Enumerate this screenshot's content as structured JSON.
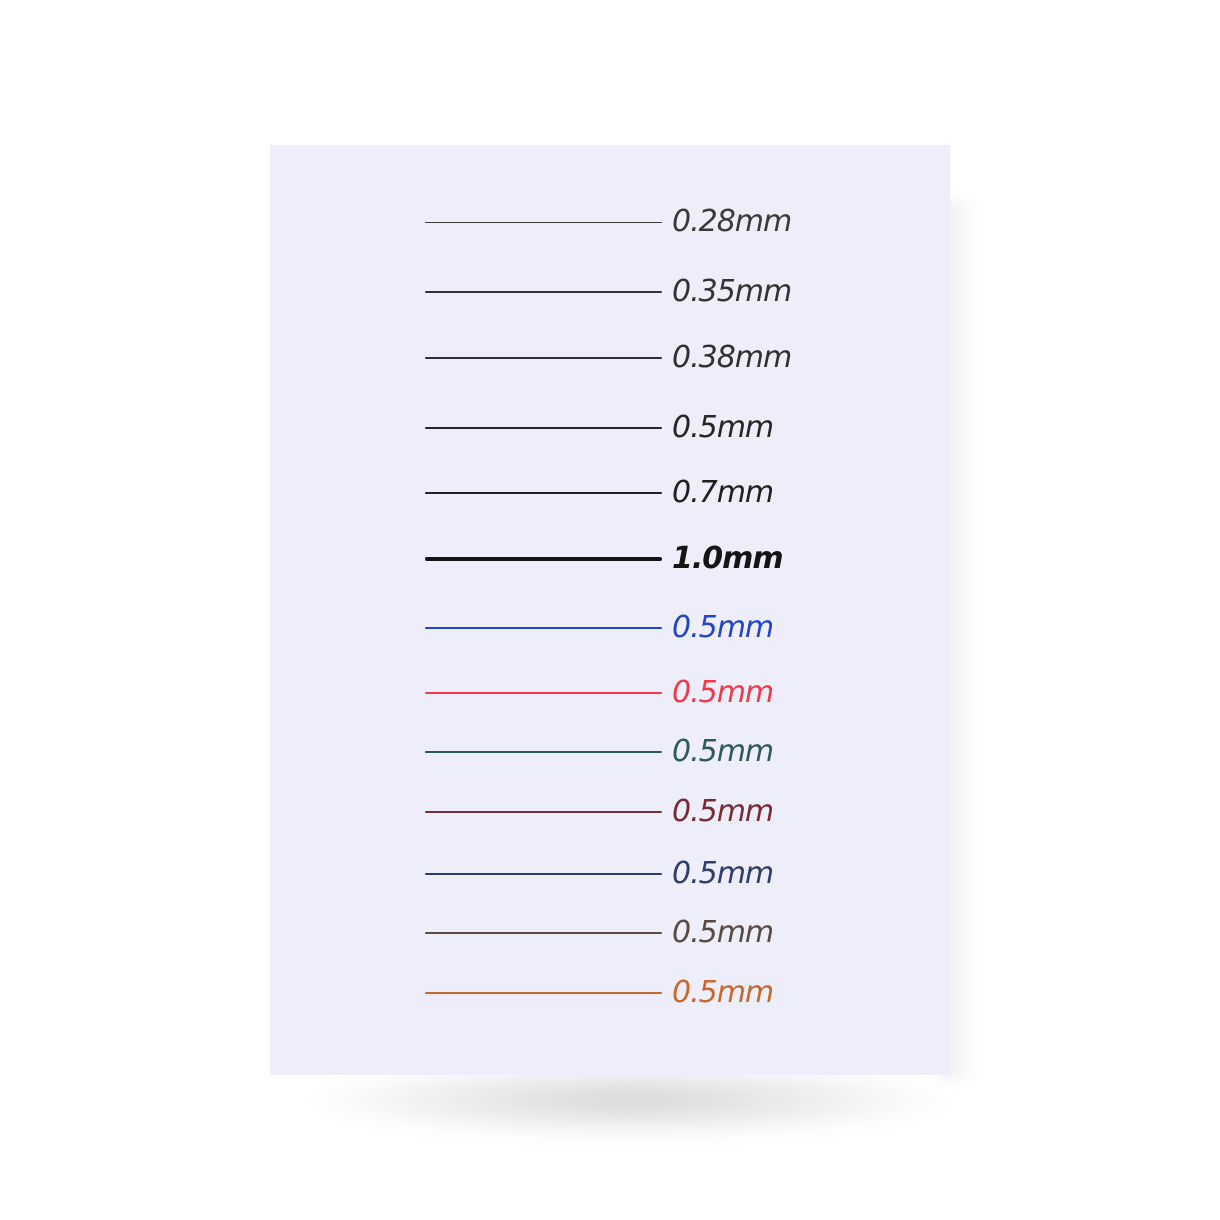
{
  "samples": [
    {
      "label": "0.28mm",
      "color": "#3a3a3a",
      "stroke": 1,
      "weight": 300
    },
    {
      "label": "0.35mm",
      "color": "#333333",
      "stroke": 1.3,
      "weight": 300
    },
    {
      "label": "0.38mm",
      "color": "#303030",
      "stroke": 1.5,
      "weight": 300
    },
    {
      "label": "0.5mm",
      "color": "#262626",
      "stroke": 2,
      "weight": 400
    },
    {
      "label": "0.7mm",
      "color": "#202020",
      "stroke": 2.5,
      "weight": 400
    },
    {
      "label": "1.0mm",
      "color": "#151515",
      "stroke": 3.5,
      "weight": 700
    },
    {
      "label": "0.5mm",
      "color": "#2346c8",
      "stroke": 2.5,
      "weight": 400
    },
    {
      "label": "0.5mm",
      "color": "#ee3a4a",
      "stroke": 2.5,
      "weight": 400
    },
    {
      "label": "0.5mm",
      "color": "#2f5a5c",
      "stroke": 2.2,
      "weight": 400
    },
    {
      "label": "0.5mm",
      "color": "#7a2a36",
      "stroke": 2.2,
      "weight": 400
    },
    {
      "label": "0.5mm",
      "color": "#2e3d6a",
      "stroke": 2.2,
      "weight": 400
    },
    {
      "label": "0.5mm",
      "color": "#5a4a44",
      "stroke": 2.2,
      "weight": 400
    },
    {
      "label": "0.5mm",
      "color": "#c8682c",
      "stroke": 2.8,
      "weight": 400
    }
  ]
}
